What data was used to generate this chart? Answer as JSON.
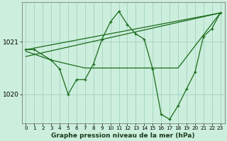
{
  "title": "Graphe pression niveau de la mer (hPa)",
  "background_color": "#cceedd",
  "line_color": "#1a6b1a",
  "grid_color": "#99ccbb",
  "xlim": [
    -0.5,
    23.5
  ],
  "ylim": [
    1019.45,
    1021.75
  ],
  "yticks": [
    1020,
    1021
  ],
  "ytick_labels": [
    "1020",
    "1021"
  ],
  "xticks": [
    0,
    1,
    2,
    3,
    4,
    5,
    6,
    7,
    8,
    9,
    10,
    11,
    12,
    13,
    14,
    15,
    16,
    17,
    18,
    19,
    20,
    21,
    22,
    23
  ],
  "line1_x": [
    0,
    23
  ],
  "line1_y": [
    1020.85,
    1021.55
  ],
  "line2_x": [
    0,
    23
  ],
  "line2_y": [
    1020.72,
    1021.55
  ],
  "line3_x": [
    0,
    3,
    7,
    14,
    18,
    23
  ],
  "line3_y": [
    1020.82,
    1020.65,
    1020.5,
    1020.5,
    1020.5,
    1021.55
  ],
  "main_x": [
    0,
    1,
    3,
    4,
    5,
    6,
    7,
    8,
    9,
    10,
    11,
    12,
    13,
    14,
    15,
    16,
    17,
    18,
    19,
    20,
    21,
    22,
    23
  ],
  "main_y": [
    1020.85,
    1020.85,
    1020.65,
    1020.48,
    1020.0,
    1020.28,
    1020.28,
    1020.58,
    1021.05,
    1021.38,
    1021.58,
    1021.33,
    1021.15,
    1021.05,
    1020.48,
    1019.62,
    1019.52,
    1019.78,
    1020.1,
    1020.42,
    1021.1,
    1021.25,
    1021.55
  ],
  "xlabel_fontsize": 6.5,
  "ytick_fontsize": 6.5,
  "xtick_fontsize": 5.2
}
